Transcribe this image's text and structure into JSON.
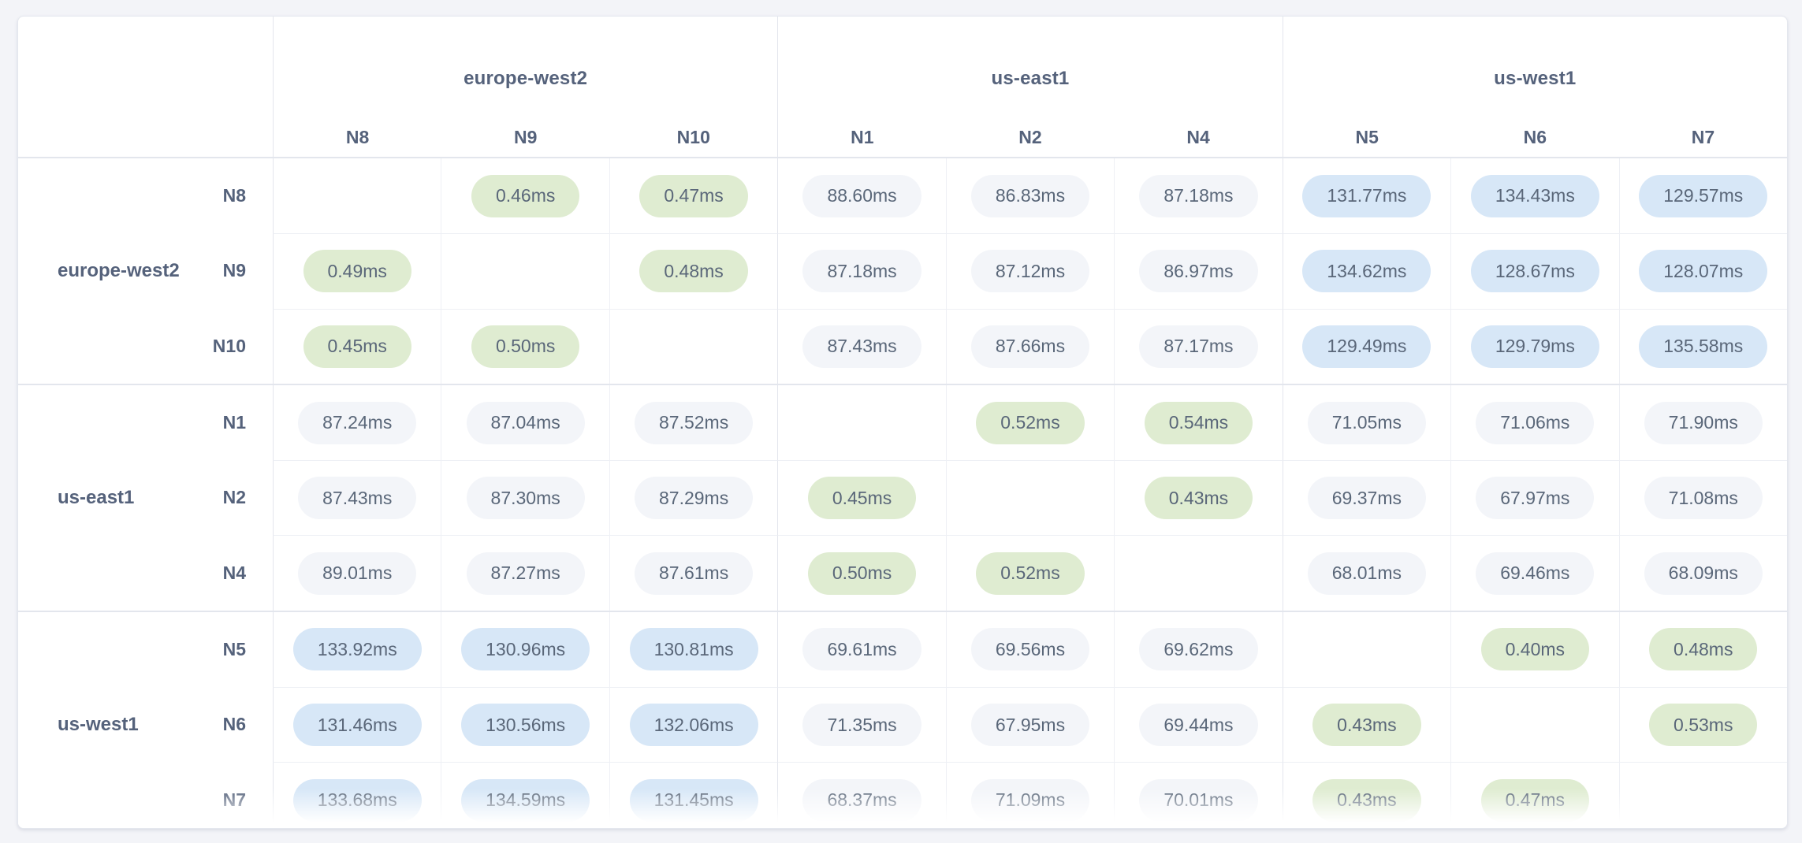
{
  "colors": {
    "page_bg": "#f3f4f8",
    "card_bg": "#ffffff",
    "card_border": "#e4e7ee",
    "line_strong": "#e3e6ed",
    "line_light": "#eef0f5",
    "header_text": "#55627b",
    "value_text": "#5a6779",
    "pill_green": "#dfecd1",
    "pill_blue": "#d7e7f7",
    "pill_gray": "#f3f5f9"
  },
  "chart_data": {
    "type": "heatmap",
    "unit": "ms",
    "value_format": "two_decimals_with_ms_suffix",
    "column_groups": [
      {
        "label": "europe-west2",
        "columns": [
          "N8",
          "N9",
          "N10"
        ]
      },
      {
        "label": "us-east1",
        "columns": [
          "N1",
          "N2",
          "N4"
        ]
      },
      {
        "label": "us-west1",
        "columns": [
          "N5",
          "N6",
          "N7"
        ]
      }
    ],
    "row_groups": [
      {
        "label": "europe-west2",
        "rows": [
          "N8",
          "N9",
          "N10"
        ]
      },
      {
        "label": "us-east1",
        "rows": [
          "N1",
          "N2",
          "N4"
        ]
      },
      {
        "label": "us-west1",
        "rows": [
          "N5",
          "N6",
          "N7"
        ]
      }
    ],
    "rows": [
      "N8",
      "N9",
      "N10",
      "N1",
      "N2",
      "N4",
      "N5",
      "N6",
      "N7"
    ],
    "columns": [
      "N8",
      "N9",
      "N10",
      "N1",
      "N2",
      "N4",
      "N5",
      "N6",
      "N7"
    ],
    "values_ms": [
      [
        null,
        0.46,
        0.47,
        88.6,
        86.83,
        87.18,
        131.77,
        134.43,
        129.57
      ],
      [
        0.49,
        null,
        0.48,
        87.18,
        87.12,
        86.97,
        134.62,
        128.67,
        128.07
      ],
      [
        0.45,
        0.5,
        null,
        87.43,
        87.66,
        87.17,
        129.49,
        129.79,
        135.58
      ],
      [
        87.24,
        87.04,
        87.52,
        null,
        0.52,
        0.54,
        71.05,
        71.06,
        71.9
      ],
      [
        87.43,
        87.3,
        87.29,
        0.45,
        null,
        0.43,
        69.37,
        67.97,
        71.08
      ],
      [
        89.01,
        87.27,
        87.61,
        0.5,
        0.52,
        null,
        68.01,
        69.46,
        68.09
      ],
      [
        133.92,
        130.96,
        130.81,
        69.61,
        69.56,
        69.62,
        null,
        0.4,
        0.48
      ],
      [
        131.46,
        130.56,
        132.06,
        71.35,
        67.95,
        69.44,
        0.43,
        null,
        0.53
      ],
      [
        133.68,
        134.59,
        131.45,
        68.37,
        71.09,
        70.01,
        0.43,
        0.47,
        null
      ]
    ],
    "color_rules": {
      "green_when_below_ms": 1,
      "blue_when_above_ms": 100,
      "otherwise": "gray",
      "diagonal": "empty"
    },
    "legend_position": "none",
    "grid": true
  }
}
